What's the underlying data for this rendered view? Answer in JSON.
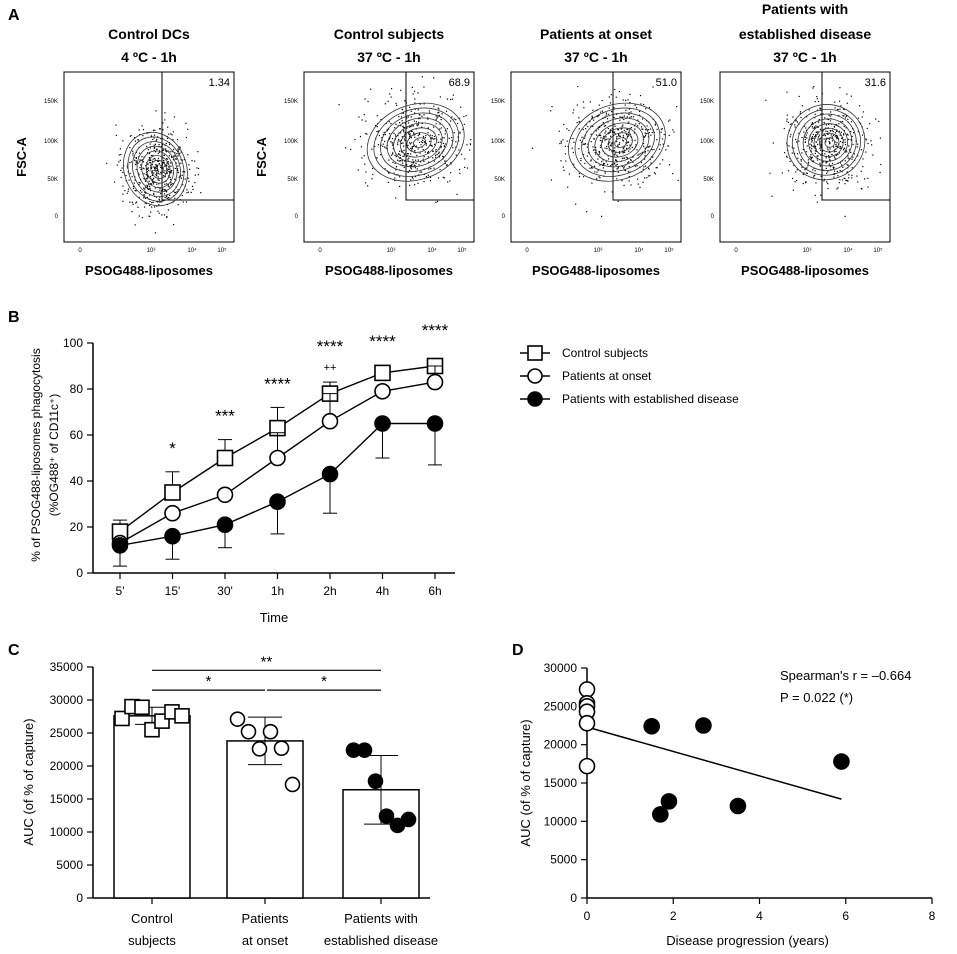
{
  "figure": {
    "panel_labels": [
      "A",
      "B",
      "C",
      "D"
    ]
  },
  "chart_data": [
    {
      "panel": "A",
      "type": "scatter",
      "description_type": "flow cytometry contour plots",
      "y_label": "FSC-A",
      "x_label": "PSOG488-liposomes",
      "y_ticks": [
        "150K",
        "100K",
        "50K",
        "0"
      ],
      "x_ticks": [
        "0",
        "10³",
        "10⁴",
        "10⁵"
      ],
      "plots": [
        {
          "title": "Control DCs",
          "subtitle": "4 ºC - 1h",
          "gate_percent": "1.34",
          "spread": 0.6,
          "center_log": 2.6,
          "center_k": 60
        },
        {
          "title": "Control subjects",
          "subtitle": "37 ºC - 1h",
          "gate_percent": "68.9",
          "spread": 1.3,
          "center_log": 3.3,
          "center_k": 95
        },
        {
          "title": "Patients at onset",
          "subtitle": "37 ºC - 1h",
          "gate_percent": "51.0",
          "spread": 1.3,
          "center_log": 3.1,
          "center_k": 95
        },
        {
          "title": "Patients with",
          "title2": "established disease",
          "subtitle": "37 ºC - 1h",
          "gate_percent": "31.6",
          "spread": 0.9,
          "center_log": 3.1,
          "center_k": 95
        }
      ]
    },
    {
      "panel": "B",
      "type": "line",
      "ylabel_line1": "% of PSOG488-liposomes phagocytosis",
      "ylabel_line2": "(%OG488⁺ of CD11c⁺)",
      "xlabel": "Time",
      "categories": [
        "5'",
        "15'",
        "30'",
        "1h",
        "2h",
        "4h",
        "6h"
      ],
      "ylim": [
        0,
        100
      ],
      "yticks": [
        0,
        20,
        40,
        60,
        80,
        100
      ],
      "series": [
        {
          "name": "Control subjects",
          "marker": "square",
          "values": [
            18,
            35,
            50,
            63,
            78,
            87,
            90
          ],
          "err": [
            5,
            9,
            8,
            9,
            5,
            0,
            0
          ]
        },
        {
          "name": "Patients at onset",
          "marker": "circle-open",
          "values": [
            13,
            26,
            34,
            50,
            66,
            79,
            83
          ],
          "err": [
            0,
            0,
            0,
            11,
            12,
            0,
            7
          ]
        },
        {
          "name": "Patients with established disease",
          "marker": "circle-filled",
          "values": [
            12,
            16,
            21,
            31,
            43,
            65,
            65
          ],
          "err": [
            9,
            10,
            10,
            14,
            17,
            15,
            18
          ]
        }
      ],
      "annotations": [
        "",
        "*",
        "***",
        "****",
        "****",
        "****",
        "****"
      ],
      "annotation_extra": {
        "index": 4,
        "text": "++"
      }
    },
    {
      "panel": "C",
      "type": "bar",
      "ylabel": "AUC (of % of capture)",
      "ylim": [
        0,
        35000
      ],
      "yticks": [
        0,
        5000,
        10000,
        15000,
        20000,
        25000,
        30000,
        35000
      ],
      "categories": [
        {
          "line1": "Control",
          "line2": "subjects"
        },
        {
          "line1": "Patients",
          "line2": "at onset"
        },
        {
          "line1": "Patients with",
          "line2": "established disease"
        }
      ],
      "bars": [
        {
          "mean": 27600,
          "err": 1300,
          "marker": "square",
          "points": [
            27200,
            29000,
            28900,
            25500,
            26800,
            28200,
            27600
          ]
        },
        {
          "mean": 23800,
          "err": 3600,
          "marker": "circle-open",
          "points": [
            27100,
            25200,
            22600,
            25200,
            22700,
            17200
          ]
        },
        {
          "mean": 16400,
          "err": 5200,
          "marker": "circle-filled",
          "points": [
            22400,
            22400,
            17700,
            12400,
            11000,
            11900
          ]
        }
      ],
      "significance": [
        {
          "from": 0,
          "to": 2,
          "label": "**",
          "y": 34500
        },
        {
          "from": 0,
          "to": 1,
          "label": "*",
          "y": 31500
        },
        {
          "from": 1,
          "to": 2,
          "label": "*",
          "y": 31500
        }
      ]
    },
    {
      "panel": "D",
      "type": "scatter",
      "ylabel": "AUC (of % of capture)",
      "xlabel": "Disease progression (years)",
      "xlim": [
        0,
        8
      ],
      "ylim": [
        0,
        30000
      ],
      "xticks": [
        0,
        2,
        4,
        6,
        8
      ],
      "yticks": [
        0,
        5000,
        10000,
        15000,
        20000,
        25000,
        30000
      ],
      "open_points": [
        [
          0,
          27200
        ],
        [
          0,
          25400
        ],
        [
          0,
          25000
        ],
        [
          0,
          24300
        ],
        [
          0,
          22800
        ],
        [
          0,
          17200
        ]
      ],
      "filled_points": [
        [
          1.5,
          22400
        ],
        [
          2.7,
          22500
        ],
        [
          5.9,
          17800
        ],
        [
          1.9,
          12600
        ],
        [
          1.7,
          10900
        ],
        [
          3.5,
          12000
        ]
      ],
      "fit_line": {
        "x": [
          0,
          5.9
        ],
        "y": [
          22300,
          12900
        ]
      },
      "stats_r": "Spearman's r = –0.664",
      "stats_p": "P = 0.022 (*)"
    }
  ]
}
